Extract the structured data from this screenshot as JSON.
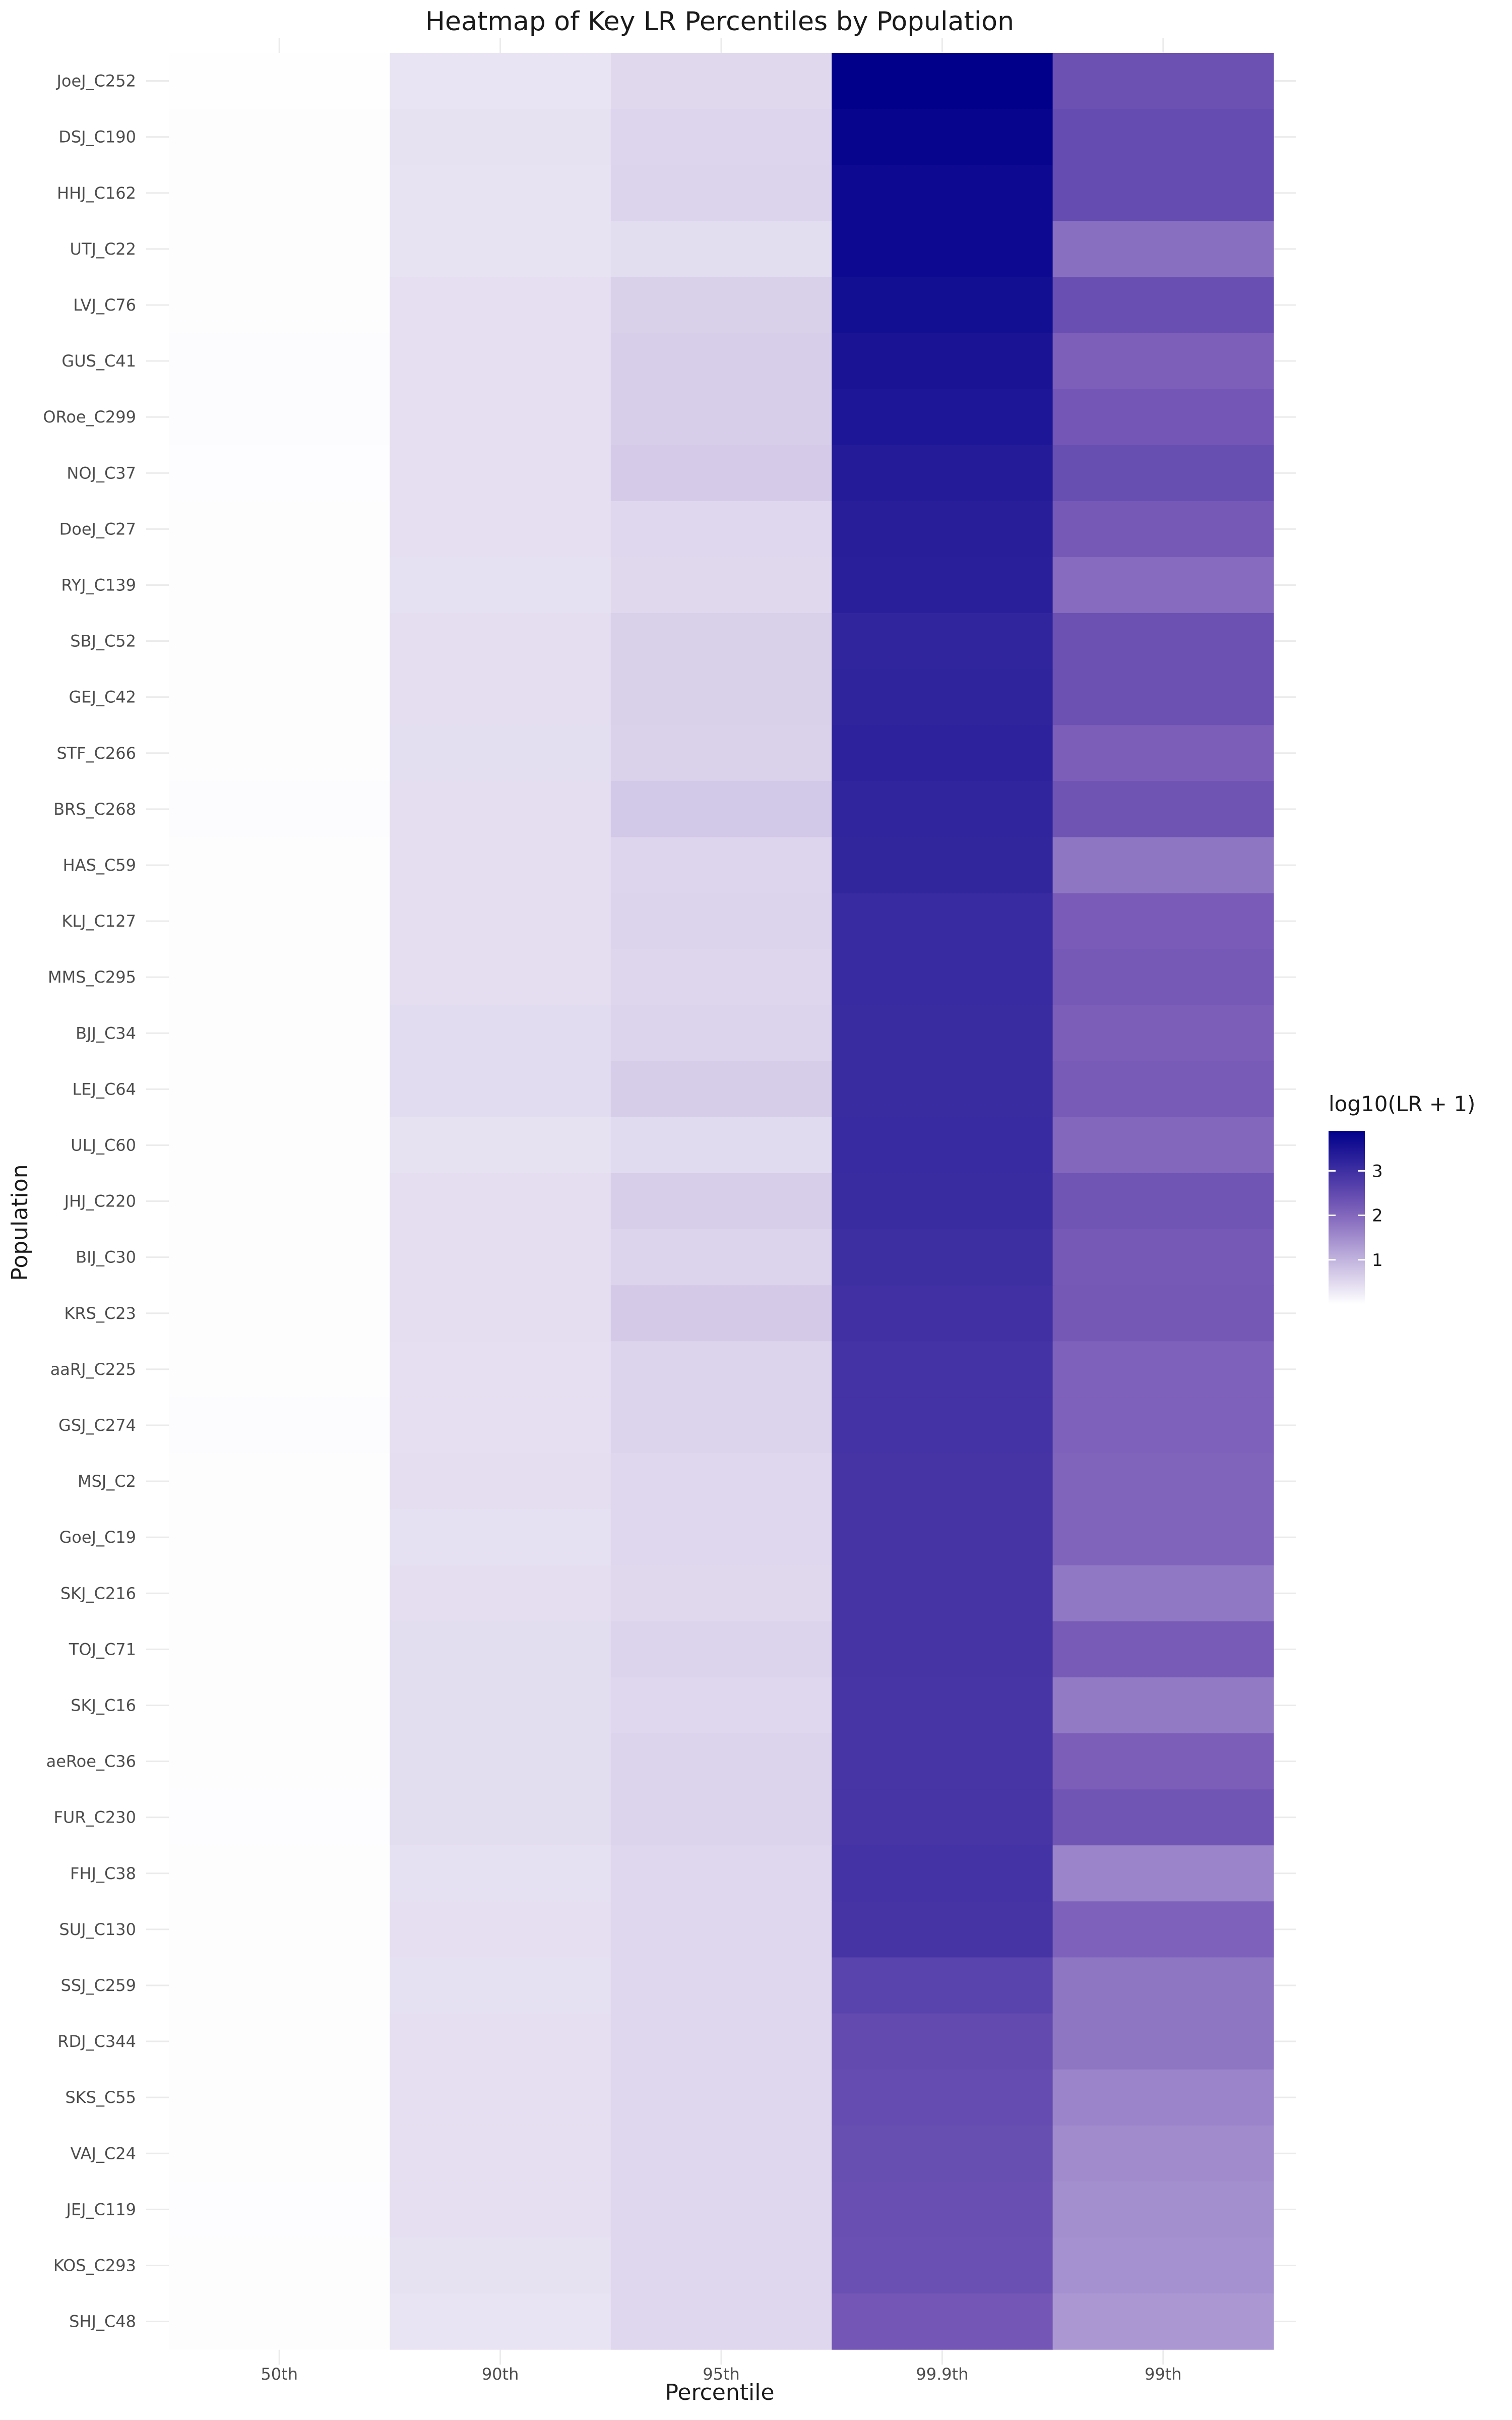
{
  "chart_data": {
    "type": "heatmap",
    "title": "Heatmap of Key LR Percentiles by Population",
    "xlabel": "Percentile",
    "ylabel": "Population",
    "x_categories": [
      "50th",
      "90th",
      "95th",
      "99.9th",
      "99th"
    ],
    "y_categories": [
      "JoeJ_C252",
      "DSJ_C190",
      "HHJ_C162",
      "UTJ_C22",
      "LVJ_C76",
      "GUS_C41",
      "ORoe_C299",
      "NOJ_C37",
      "DoeJ_C27",
      "RYJ_C139",
      "SBJ_C52",
      "GEJ_C42",
      "STF_C266",
      "BRS_C268",
      "HAS_C59",
      "KLJ_C127",
      "MMS_C295",
      "BJJ_C34",
      "LEJ_C64",
      "ULJ_C60",
      "JHJ_C220",
      "BIJ_C30",
      "KRS_C23",
      "aaRJ_C225",
      "GSJ_C274",
      "MSJ_C2",
      "GoeJ_C19",
      "SKJ_C216",
      "TOJ_C71",
      "SKJ_C16",
      "aeRoe_C36",
      "FUR_C230",
      "FHJ_C38",
      "SUJ_C130",
      "SSJ_C259",
      "RDJ_C344",
      "SKS_C55",
      "VAJ_C24",
      "JEJ_C119",
      "KOS_C293",
      "SHJ_C48"
    ],
    "values": [
      [
        0.01,
        0.35,
        0.5,
        3.9,
        2.35
      ],
      [
        0.02,
        0.38,
        0.55,
        3.8,
        2.45
      ],
      [
        0.02,
        0.37,
        0.56,
        3.72,
        2.45
      ],
      [
        0.02,
        0.37,
        0.45,
        3.72,
        1.9
      ],
      [
        0.02,
        0.42,
        0.62,
        3.62,
        2.4
      ],
      [
        0.05,
        0.42,
        0.64,
        3.52,
        2.1
      ],
      [
        0.05,
        0.42,
        0.64,
        3.48,
        2.25
      ],
      [
        0.04,
        0.42,
        0.68,
        3.38,
        2.42
      ],
      [
        0.03,
        0.42,
        0.52,
        3.32,
        2.2
      ],
      [
        0.03,
        0.4,
        0.5,
        3.3,
        1.95
      ],
      [
        0.03,
        0.44,
        0.62,
        3.2,
        2.35
      ],
      [
        0.03,
        0.44,
        0.62,
        3.22,
        2.35
      ],
      [
        0.03,
        0.43,
        0.6,
        3.25,
        2.12
      ],
      [
        0.05,
        0.44,
        0.72,
        3.2,
        2.3
      ],
      [
        0.02,
        0.44,
        0.55,
        3.18,
        1.8
      ],
      [
        0.02,
        0.44,
        0.56,
        3.1,
        2.15
      ],
      [
        0.03,
        0.44,
        0.54,
        3.1,
        2.2
      ],
      [
        0.02,
        0.46,
        0.56,
        3.08,
        2.12
      ],
      [
        0.02,
        0.46,
        0.66,
        3.08,
        2.18
      ],
      [
        0.02,
        0.38,
        0.48,
        3.1,
        2.0
      ],
      [
        0.03,
        0.44,
        0.64,
        3.08,
        2.28
      ],
      [
        0.02,
        0.44,
        0.56,
        3.02,
        2.2
      ],
      [
        0.02,
        0.44,
        0.7,
        2.98,
        2.22
      ],
      [
        0.03,
        0.42,
        0.56,
        2.92,
        2.08
      ],
      [
        0.05,
        0.42,
        0.56,
        2.92,
        2.08
      ],
      [
        0.02,
        0.44,
        0.52,
        2.9,
        2.05
      ],
      [
        0.02,
        0.4,
        0.52,
        2.9,
        2.05
      ],
      [
        0.02,
        0.44,
        0.5,
        2.9,
        1.78
      ],
      [
        0.02,
        0.45,
        0.56,
        2.9,
        2.18
      ],
      [
        0.02,
        0.45,
        0.52,
        2.88,
        1.75
      ],
      [
        0.03,
        0.45,
        0.56,
        2.88,
        2.12
      ],
      [
        0.04,
        0.45,
        0.56,
        2.88,
        2.28
      ],
      [
        0.02,
        0.4,
        0.52,
        2.92,
        1.62
      ],
      [
        0.02,
        0.42,
        0.52,
        2.9,
        2.08
      ],
      [
        0.02,
        0.4,
        0.52,
        2.62,
        1.8
      ],
      [
        0.02,
        0.42,
        0.52,
        2.48,
        1.8
      ],
      [
        0.02,
        0.42,
        0.52,
        2.45,
        1.62
      ],
      [
        0.03,
        0.42,
        0.52,
        2.42,
        1.52
      ],
      [
        0.04,
        0.42,
        0.52,
        2.4,
        1.48
      ],
      [
        0.02,
        0.38,
        0.52,
        2.38,
        1.45
      ],
      [
        0.02,
        0.36,
        0.52,
        2.25,
        1.35
      ]
    ],
    "legend": {
      "title": "log10(LR + 1)",
      "ticks": [
        1,
        2,
        3
      ],
      "range": [
        0,
        3.9
      ],
      "position": "right"
    },
    "colors": {
      "low": "#ffffff",
      "mid": "#7a5cb8",
      "high": "#00008b"
    },
    "grid": true
  }
}
